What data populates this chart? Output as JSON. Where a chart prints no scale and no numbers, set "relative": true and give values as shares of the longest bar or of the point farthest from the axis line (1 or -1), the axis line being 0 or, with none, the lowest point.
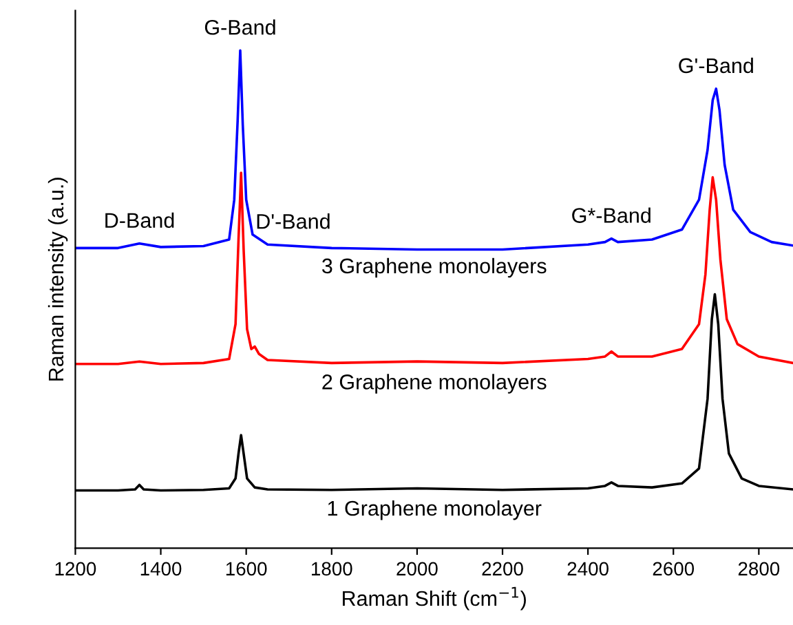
{
  "chart_data": {
    "type": "line",
    "relative": true,
    "xlabel": "Raman Shift (cm$^{−1}$)",
    "ylabel": "Raman intensity (a.u.)",
    "xlim": [
      1200,
      2880
    ],
    "xticks": [
      1200,
      1400,
      1600,
      1800,
      2000,
      2200,
      2400,
      2600,
      2800
    ],
    "grid": false,
    "legend": false,
    "marker": "none",
    "line_style": "solid",
    "tick_labels": "x",
    "series": [
      {
        "name": "1 Graphene monolayer",
        "color": "#000000",
        "x": [
          1200,
          1300,
          1340,
          1350,
          1360,
          1400,
          1500,
          1560,
          1575,
          1582,
          1588,
          1594,
          1602,
          1620,
          1650,
          1800,
          2000,
          2200,
          2400,
          2440,
          2455,
          2470,
          2550,
          2620,
          2660,
          2680,
          2690,
          2697,
          2705,
          2715,
          2730,
          2760,
          2800,
          2880
        ],
        "values": [
          0.116,
          0.116,
          0.118,
          0.127,
          0.118,
          0.116,
          0.117,
          0.12,
          0.14,
          0.19,
          0.227,
          0.19,
          0.14,
          0.122,
          0.118,
          0.117,
          0.12,
          0.117,
          0.12,
          0.125,
          0.132,
          0.125,
          0.122,
          0.13,
          0.16,
          0.3,
          0.46,
          0.51,
          0.45,
          0.3,
          0.19,
          0.14,
          0.125,
          0.118
        ]
      },
      {
        "name": "2 Graphene monolayers",
        "color": "#ff0000",
        "x": [
          1200,
          1300,
          1350,
          1400,
          1500,
          1560,
          1575,
          1582,
          1588,
          1594,
          1602,
          1612,
          1620,
          1630,
          1650,
          1800,
          2000,
          2200,
          2400,
          2440,
          2455,
          2470,
          2550,
          2620,
          2660,
          2675,
          2685,
          2692,
          2700,
          2710,
          2725,
          2750,
          2800,
          2880
        ],
        "values": [
          0.37,
          0.37,
          0.375,
          0.37,
          0.372,
          0.38,
          0.45,
          0.62,
          0.754,
          0.6,
          0.44,
          0.4,
          0.405,
          0.39,
          0.378,
          0.372,
          0.375,
          0.372,
          0.38,
          0.385,
          0.395,
          0.385,
          0.385,
          0.4,
          0.45,
          0.55,
          0.68,
          0.745,
          0.7,
          0.58,
          0.46,
          0.41,
          0.385,
          0.372
        ]
      },
      {
        "name": "3 Graphene monolayers",
        "color": "#0000ff",
        "x": [
          1200,
          1300,
          1350,
          1400,
          1500,
          1560,
          1572,
          1580,
          1586,
          1592,
          1600,
          1615,
          1650,
          1800,
          2000,
          2200,
          2400,
          2440,
          2455,
          2470,
          2550,
          2620,
          2660,
          2680,
          2692,
          2700,
          2708,
          2720,
          2740,
          2780,
          2830,
          2880
        ],
        "values": [
          0.603,
          0.603,
          0.612,
          0.605,
          0.607,
          0.62,
          0.7,
          0.86,
          1.0,
          0.85,
          0.7,
          0.63,
          0.61,
          0.603,
          0.6,
          0.6,
          0.61,
          0.615,
          0.622,
          0.615,
          0.62,
          0.64,
          0.7,
          0.8,
          0.9,
          0.923,
          0.88,
          0.77,
          0.68,
          0.635,
          0.615,
          0.608
        ]
      }
    ],
    "annotations": [
      {
        "text": "G-Band",
        "x": 1586,
        "y": 1.0
      },
      {
        "text": "D-Band",
        "x": 1350,
        "y": 0.612
      },
      {
        "text": "D'-Band",
        "x": 1710,
        "y": 0.61
      },
      {
        "text": "G*-Band",
        "x": 2455,
        "y": 0.622
      },
      {
        "text": "G'-Band",
        "x": 2700,
        "y": 0.923
      }
    ]
  }
}
